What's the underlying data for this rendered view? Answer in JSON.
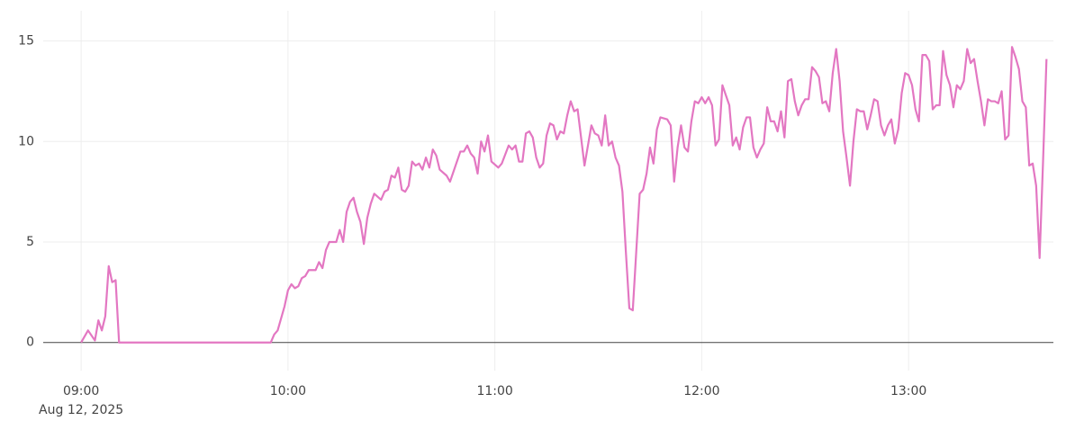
{
  "chart_data": {
    "type": "line",
    "x": [
      "2025-08-12T09:00",
      "2025-08-12T09:02",
      "2025-08-12T09:04",
      "2025-08-12T09:05",
      "2025-08-12T09:06",
      "2025-08-12T09:07",
      "2025-08-12T09:08",
      "2025-08-12T09:09",
      "2025-08-12T09:10",
      "2025-08-12T09:11",
      "2025-08-12T09:55",
      "2025-08-12T09:56",
      "2025-08-12T09:57",
      "2025-08-12T09:59",
      "2025-08-12T10:00",
      "2025-08-12T10:01",
      "2025-08-12T10:02",
      "2025-08-12T10:03",
      "2025-08-12T10:04",
      "2025-08-12T10:05",
      "2025-08-12T10:06",
      "2025-08-12T10:08",
      "2025-08-12T10:09",
      "2025-08-12T10:10",
      "2025-08-12T10:11",
      "2025-08-12T10:12",
      "2025-08-12T10:14",
      "2025-08-12T10:15",
      "2025-08-12T10:16",
      "2025-08-12T10:17",
      "2025-08-12T10:18",
      "2025-08-12T10:19",
      "2025-08-12T10:20",
      "2025-08-12T10:21",
      "2025-08-12T10:22",
      "2025-08-12T10:23",
      "2025-08-12T10:24",
      "2025-08-12T10:25",
      "2025-08-12T10:27",
      "2025-08-12T10:28",
      "2025-08-12T10:29",
      "2025-08-12T10:30",
      "2025-08-12T10:31",
      "2025-08-12T10:32",
      "2025-08-12T10:33",
      "2025-08-12T10:34",
      "2025-08-12T10:35",
      "2025-08-12T10:36",
      "2025-08-12T10:37",
      "2025-08-12T10:38",
      "2025-08-12T10:39",
      "2025-08-12T10:40",
      "2025-08-12T10:41",
      "2025-08-12T10:42",
      "2025-08-12T10:43",
      "2025-08-12T10:44",
      "2025-08-12T10:46",
      "2025-08-12T10:47",
      "2025-08-12T10:48",
      "2025-08-12T10:50",
      "2025-08-12T10:51",
      "2025-08-12T10:52",
      "2025-08-12T10:53",
      "2025-08-12T10:54",
      "2025-08-12T10:55",
      "2025-08-12T10:56",
      "2025-08-12T10:57",
      "2025-08-12T10:58",
      "2025-08-12T10:59",
      "2025-08-12T11:01",
      "2025-08-12T11:02",
      "2025-08-12T11:04",
      "2025-08-12T11:05",
      "2025-08-12T11:06",
      "2025-08-12T11:07",
      "2025-08-12T11:08",
      "2025-08-12T11:09",
      "2025-08-12T11:10",
      "2025-08-12T11:11",
      "2025-08-12T11:12",
      "2025-08-12T11:13",
      "2025-08-12T11:14",
      "2025-08-12T11:15",
      "2025-08-12T11:16",
      "2025-08-12T11:17",
      "2025-08-12T11:18",
      "2025-08-12T11:19",
      "2025-08-12T11:20",
      "2025-08-12T11:21",
      "2025-08-12T11:22",
      "2025-08-12T11:23",
      "2025-08-12T11:24",
      "2025-08-12T11:25",
      "2025-08-12T11:26",
      "2025-08-12T11:27",
      "2025-08-12T11:28",
      "2025-08-12T11:29",
      "2025-08-12T11:30",
      "2025-08-12T11:31",
      "2025-08-12T11:32",
      "2025-08-12T11:33",
      "2025-08-12T11:34",
      "2025-08-12T11:35",
      "2025-08-12T11:36",
      "2025-08-12T11:37",
      "2025-08-12T11:38",
      "2025-08-12T11:39",
      "2025-08-12T11:40",
      "2025-08-12T11:41",
      "2025-08-12T11:42",
      "2025-08-12T11:43",
      "2025-08-12T11:44",
      "2025-08-12T11:45",
      "2025-08-12T11:46",
      "2025-08-12T11:47",
      "2025-08-12T11:48",
      "2025-08-12T11:50",
      "2025-08-12T11:51",
      "2025-08-12T11:52",
      "2025-08-12T11:53",
      "2025-08-12T11:54",
      "2025-08-12T11:55",
      "2025-08-12T11:56",
      "2025-08-12T11:57",
      "2025-08-12T11:58",
      "2025-08-12T11:59",
      "2025-08-12T12:00",
      "2025-08-12T12:01",
      "2025-08-12T12:02",
      "2025-08-12T12:03",
      "2025-08-12T12:04",
      "2025-08-12T12:05",
      "2025-08-12T12:06",
      "2025-08-12T12:07",
      "2025-08-12T12:08",
      "2025-08-12T12:09",
      "2025-08-12T12:10",
      "2025-08-12T12:11",
      "2025-08-12T12:12",
      "2025-08-12T12:13",
      "2025-08-12T12:14",
      "2025-08-12T12:15",
      "2025-08-12T12:16",
      "2025-08-12T12:17",
      "2025-08-12T12:18",
      "2025-08-12T12:19",
      "2025-08-12T12:20",
      "2025-08-12T12:21",
      "2025-08-12T12:22",
      "2025-08-12T12:23",
      "2025-08-12T12:24",
      "2025-08-12T12:25",
      "2025-08-12T12:26",
      "2025-08-12T12:27",
      "2025-08-12T12:28",
      "2025-08-12T12:29",
      "2025-08-12T12:30",
      "2025-08-12T12:31",
      "2025-08-12T12:32",
      "2025-08-12T12:33",
      "2025-08-12T12:34",
      "2025-08-12T12:35",
      "2025-08-12T12:36",
      "2025-08-12T12:37",
      "2025-08-12T12:38",
      "2025-08-12T12:39",
      "2025-08-12T12:40",
      "2025-08-12T12:41",
      "2025-08-12T12:42",
      "2025-08-12T12:43",
      "2025-08-12T12:44",
      "2025-08-12T12:45",
      "2025-08-12T12:46",
      "2025-08-12T12:47",
      "2025-08-12T12:48",
      "2025-08-12T12:49",
      "2025-08-12T12:50",
      "2025-08-12T12:51",
      "2025-08-12T12:52",
      "2025-08-12T12:53",
      "2025-08-12T12:54",
      "2025-08-12T12:55",
      "2025-08-12T12:56",
      "2025-08-12T12:57",
      "2025-08-12T12:58",
      "2025-08-12T12:59",
      "2025-08-12T13:00",
      "2025-08-12T13:01",
      "2025-08-12T13:02",
      "2025-08-12T13:03",
      "2025-08-12T13:04",
      "2025-08-12T13:05",
      "2025-08-12T13:06",
      "2025-08-12T13:07",
      "2025-08-12T13:08",
      "2025-08-12T13:09",
      "2025-08-12T13:10",
      "2025-08-12T13:11",
      "2025-08-12T13:12",
      "2025-08-12T13:13",
      "2025-08-12T13:14",
      "2025-08-12T13:15",
      "2025-08-12T13:16",
      "2025-08-12T13:17",
      "2025-08-12T13:18",
      "2025-08-12T13:19",
      "2025-08-12T13:20",
      "2025-08-12T13:21",
      "2025-08-12T13:22",
      "2025-08-12T13:23",
      "2025-08-12T13:24",
      "2025-08-12T13:25",
      "2025-08-12T13:26",
      "2025-08-12T13:27",
      "2025-08-12T13:28",
      "2025-08-12T13:29",
      "2025-08-12T13:30",
      "2025-08-12T13:31",
      "2025-08-12T13:32",
      "2025-08-12T13:33",
      "2025-08-12T13:34",
      "2025-08-12T13:35",
      "2025-08-12T13:36",
      "2025-08-12T13:37",
      "2025-08-12T13:38",
      "2025-08-12T13:39",
      "2025-08-12T13:40"
    ],
    "values": [
      0,
      0.6,
      0.1,
      1.1,
      0.6,
      1.3,
      3.8,
      3.0,
      3.1,
      0,
      0,
      0.4,
      0.6,
      1.8,
      2.6,
      2.9,
      2.7,
      2.8,
      3.2,
      3.3,
      3.6,
      3.6,
      4.0,
      3.7,
      4.6,
      5.0,
      5.0,
      5.6,
      5.0,
      6.5,
      7.0,
      7.2,
      6.5,
      6.0,
      4.9,
      6.2,
      6.9,
      7.4,
      7.1,
      7.5,
      7.6,
      8.3,
      8.2,
      8.7,
      7.6,
      7.5,
      7.8,
      9.0,
      8.8,
      8.9,
      8.6,
      9.2,
      8.7,
      9.6,
      9.3,
      8.6,
      8.3,
      8.0,
      8.5,
      9.5,
      9.5,
      9.8,
      9.4,
      9.2,
      8.4,
      10.0,
      9.5,
      10.3,
      9.0,
      8.7,
      8.9,
      9.8,
      9.6,
      9.8,
      9.0,
      9.0,
      10.4,
      10.5,
      10.2,
      9.2,
      8.7,
      8.9,
      10.3,
      10.9,
      10.8,
      10.1,
      10.5,
      10.4,
      11.3,
      12.0,
      11.5,
      11.6,
      10.2,
      8.8,
      9.8,
      10.8,
      10.4,
      10.3,
      9.8,
      11.3,
      9.8,
      10.0,
      9.2,
      8.8,
      7.5,
      4.5,
      1.7,
      1.6,
      4.5,
      7.4,
      7.6,
      8.4,
      9.7,
      8.9,
      10.6,
      11.2,
      11.1,
      10.8,
      8.0,
      9.7,
      10.8,
      9.7,
      9.5,
      11.0,
      12.0,
      11.9,
      12.2,
      11.9,
      12.2,
      11.8,
      9.8,
      10.1,
      12.8,
      12.3,
      11.8,
      9.8,
      10.2,
      9.6,
      10.7,
      11.2,
      11.2,
      9.7,
      9.2,
      9.6,
      9.9,
      11.7,
      11.0,
      11.0,
      10.5,
      11.5,
      10.2,
      13.0,
      13.1,
      12.0,
      11.3,
      11.8,
      12.1,
      12.1,
      13.7,
      13.5,
      13.2,
      11.9,
      12.0,
      11.5,
      13.4,
      14.6,
      13.0,
      10.5,
      9.2,
      7.8,
      10.0,
      11.6,
      11.5,
      11.5,
      10.6,
      11.3,
      12.1,
      12.0,
      10.8,
      10.3,
      10.8,
      11.1,
      9.9,
      10.6,
      12.4,
      13.4,
      13.3,
      12.8,
      11.6,
      11.0,
      14.3,
      14.3,
      14.0,
      11.6,
      11.8,
      11.8,
      14.5,
      13.3,
      12.8,
      11.7,
      12.8,
      12.6,
      13.0,
      14.6,
      13.9,
      14.1,
      13.0,
      12.0,
      10.8,
      12.1,
      12.0,
      12.0,
      11.9,
      12.5,
      10.1,
      10.3,
      14.7,
      14.2,
      13.6,
      12.0,
      11.7,
      8.8,
      8.9,
      7.8,
      4.2,
      9.0,
      14.1
    ],
    "color": "#e377c2",
    "xlim": [
      "2025-08-12T08:49",
      "2025-08-12T13:42"
    ],
    "xticks": [
      {
        "value": "2025-08-12T09:00",
        "label": "09:00"
      },
      {
        "value": "2025-08-12T10:00",
        "label": "10:00"
      },
      {
        "value": "2025-08-12T11:00",
        "label": "11:00"
      },
      {
        "value": "2025-08-12T12:00",
        "label": "12:00"
      },
      {
        "value": "2025-08-12T13:00",
        "label": "13:00"
      }
    ],
    "x_date_label": "Aug 12, 2025",
    "ylim": [
      -1.4,
      16.5
    ],
    "yticks": [
      0,
      5,
      10,
      15
    ],
    "grid": true
  }
}
